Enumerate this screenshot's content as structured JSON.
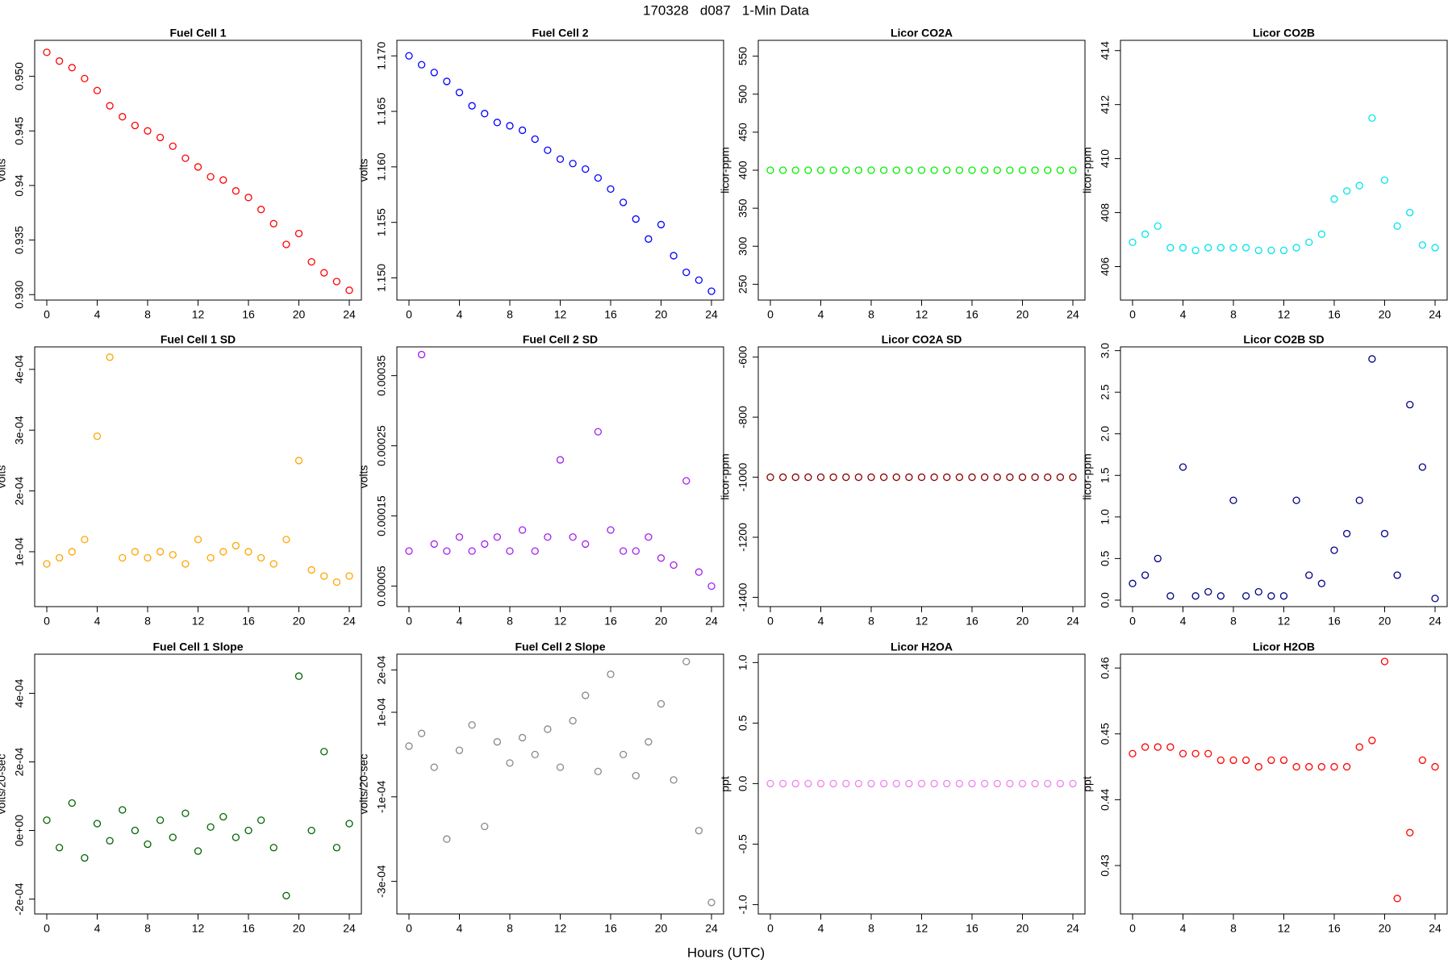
{
  "title": "170328   d087   1-Min Data",
  "xlabel": "Hours (UTC)",
  "chart_data": [
    {
      "type": "scatter",
      "title": "Fuel Cell 1",
      "ylabel": "volts",
      "color": "#ff0000",
      "x": [
        0,
        1,
        2,
        3,
        4,
        5,
        6,
        7,
        8,
        9,
        10,
        11,
        12,
        13,
        14,
        15,
        16,
        17,
        18,
        19,
        20,
        21,
        22,
        23,
        24
      ],
      "values": [
        0.9522,
        0.9514,
        0.9508,
        0.9498,
        0.9487,
        0.9473,
        0.9463,
        0.9455,
        0.945,
        0.9444,
        0.9436,
        0.9425,
        0.9417,
        0.9408,
        0.9405,
        0.9395,
        0.9389,
        0.9378,
        0.9365,
        0.9346,
        0.9356,
        0.933,
        0.932,
        0.9312,
        0.9304
      ],
      "xlim": [
        -0.96,
        24.96
      ],
      "xticks": [
        0,
        4,
        8,
        12,
        16,
        20,
        24
      ],
      "ylim": [
        0.9295,
        0.9533
      ],
      "yticks": [
        {
          "value": 0.93,
          "label": "0.930"
        },
        0.935,
        0.94,
        0.945,
        {
          "value": 0.95,
          "label": "0.950"
        }
      ]
    },
    {
      "type": "scatter",
      "title": "Fuel Cell 2",
      "ylabel": "volts",
      "color": "#0000ff",
      "x": [
        0,
        1,
        2,
        3,
        4,
        5,
        6,
        7,
        8,
        9,
        10,
        11,
        12,
        13,
        14,
        15,
        16,
        17,
        18,
        19,
        20,
        21,
        22,
        23,
        24
      ],
      "values": [
        1.17,
        1.1692,
        1.1685,
        1.1677,
        1.1667,
        1.1655,
        1.1648,
        1.164,
        1.1637,
        1.1633,
        1.1625,
        1.1615,
        1.1607,
        1.1603,
        1.1598,
        1.159,
        1.158,
        1.1568,
        1.1553,
        1.1535,
        1.1548,
        1.152,
        1.1505,
        1.1498,
        1.1488
      ],
      "xlim": [
        -0.96,
        24.96
      ],
      "xticks": [
        0,
        4,
        8,
        12,
        16,
        20,
        24
      ],
      "ylim": [
        1.148,
        1.1714
      ],
      "yticks": [
        {
          "value": 1.15,
          "label": "1.150"
        },
        1.155,
        {
          "value": 1.16,
          "label": "1.160"
        },
        1.165,
        {
          "value": 1.17,
          "label": "1.170"
        }
      ]
    },
    {
      "type": "scatter",
      "title": "Licor CO2A",
      "ylabel": "licor-ppm",
      "color": "#00ee00",
      "x": [
        0,
        1,
        2,
        3,
        4,
        5,
        6,
        7,
        8,
        9,
        10,
        11,
        12,
        13,
        14,
        15,
        16,
        17,
        18,
        19,
        20,
        21,
        22,
        23,
        24
      ],
      "values": [
        400,
        400,
        400,
        400,
        400,
        400,
        400,
        400,
        400,
        400,
        400,
        400,
        400,
        400,
        400,
        400,
        400,
        400,
        400,
        400,
        400,
        400,
        400,
        400,
        400
      ],
      "xlim": [
        -0.96,
        24.96
      ],
      "xticks": [
        0,
        4,
        8,
        12,
        16,
        20,
        24
      ],
      "ylim": [
        229.2,
        570.8
      ],
      "yticks": [
        250,
        300,
        350,
        400,
        450,
        500,
        550
      ]
    },
    {
      "type": "scatter",
      "title": "Licor CO2B",
      "ylabel": "licor-ppm",
      "color": "#00e5ee",
      "x": [
        0,
        1,
        2,
        3,
        4,
        5,
        6,
        7,
        8,
        9,
        10,
        11,
        12,
        13,
        14,
        15,
        16,
        17,
        18,
        19,
        20,
        21,
        22,
        23,
        24
      ],
      "values": [
        406.9,
        407.2,
        407.5,
        406.7,
        406.7,
        406.6,
        406.7,
        406.7,
        406.7,
        406.7,
        406.6,
        406.6,
        406.6,
        406.7,
        406.9,
        407.2,
        408.5,
        408.8,
        409.0,
        411.5,
        409.2,
        407.5,
        408.0,
        406.8,
        406.7
      ],
      "xlim": [
        -0.96,
        24.96
      ],
      "xticks": [
        0,
        4,
        8,
        12,
        16,
        20,
        24
      ],
      "ylim": [
        404.76,
        414.38
      ],
      "yticks": [
        406,
        408,
        410,
        412,
        414
      ]
    },
    {
      "type": "scatter",
      "title": "Fuel Cell 1 SD",
      "ylabel": "volts",
      "color": "#ffa500",
      "x": [
        0,
        1,
        2,
        3,
        4,
        5,
        6,
        7,
        8,
        9,
        10,
        11,
        12,
        13,
        14,
        15,
        16,
        17,
        18,
        19,
        20,
        21,
        22,
        23,
        24
      ],
      "values": [
        8e-05,
        9e-05,
        0.0001,
        0.00012,
        0.00029,
        0.00042,
        9e-05,
        0.0001,
        9e-05,
        0.0001,
        9.5e-05,
        8e-05,
        0.00012,
        9e-05,
        0.0001,
        0.00011,
        0.0001,
        9e-05,
        8e-05,
        0.00012,
        0.00025,
        7e-05,
        6e-05,
        5e-05,
        6e-05
      ],
      "xlim": [
        -0.96,
        24.96
      ],
      "xticks": [
        0,
        4,
        8,
        12,
        16,
        20,
        24
      ],
      "ylim": [
        9.7e-06,
        0.000437
      ],
      "yticks": [
        {
          "value": 0.0001,
          "label": "1e-04"
        },
        {
          "value": 0.0002,
          "label": "2e-04"
        },
        {
          "value": 0.0003,
          "label": "3e-04"
        },
        {
          "value": 0.0004,
          "label": "4e-04"
        }
      ]
    },
    {
      "type": "scatter",
      "title": "Fuel Cell 2 SD",
      "ylabel": "volts",
      "color": "#a020f0",
      "x": [
        0,
        1,
        2,
        3,
        4,
        5,
        6,
        7,
        8,
        9,
        10,
        11,
        12,
        13,
        14,
        15,
        16,
        17,
        18,
        19,
        20,
        21,
        22,
        23,
        24
      ],
      "values": [
        0.0001,
        0.00038,
        0.00011,
        0.0001,
        0.00012,
        0.0001,
        0.00011,
        0.00012,
        0.0001,
        0.00013,
        0.0001,
        0.00012,
        0.00023,
        0.00012,
        0.00011,
        0.00027,
        0.00013,
        0.0001,
        0.0001,
        0.00012,
        9e-05,
        8e-05,
        0.0002,
        7e-05,
        5e-05
      ],
      "xlim": [
        -0.96,
        24.96
      ],
      "xticks": [
        0,
        4,
        8,
        12,
        16,
        20,
        24
      ],
      "ylim": [
        2.08e-05,
        0.000391
      ],
      "yticks": [
        5e-05,
        0.00015,
        0.00025,
        0.00035
      ]
    },
    {
      "type": "scatter",
      "title": "Licor CO2A SD",
      "ylabel": "licor-ppm",
      "color": "#8b0000",
      "x": [
        0,
        1,
        2,
        3,
        4,
        5,
        6,
        7,
        8,
        9,
        10,
        11,
        12,
        13,
        14,
        15,
        16,
        17,
        18,
        19,
        20,
        21,
        22,
        23,
        24
      ],
      "values": [
        -1000,
        -1000,
        -1000,
        -1000,
        -1000,
        -1000,
        -1000,
        -1000,
        -1000,
        -1000,
        -1000,
        -1000,
        -1000,
        -1000,
        -1000,
        -1000,
        -1000,
        -1000,
        -1000,
        -1000,
        -1000,
        -1000,
        -1000,
        -1000,
        -1000
      ],
      "xlim": [
        -0.96,
        24.96
      ],
      "xticks": [
        0,
        4,
        8,
        12,
        16,
        20,
        24
      ],
      "ylim": [
        -1431,
        -565.9
      ],
      "yticks": [
        -1400,
        -1200,
        -1000,
        -800,
        -600
      ]
    },
    {
      "type": "scatter",
      "title": "Licor CO2B SD",
      "ylabel": "licor-ppm",
      "color": "#000080",
      "x": [
        0,
        1,
        2,
        3,
        4,
        5,
        6,
        7,
        8,
        9,
        10,
        11,
        12,
        13,
        14,
        15,
        16,
        17,
        18,
        19,
        20,
        21,
        22,
        23,
        24
      ],
      "values": [
        0.2,
        0.3,
        0.5,
        0.05,
        1.6,
        0.05,
        0.1,
        0.05,
        1.2,
        0.05,
        0.1,
        0.05,
        0.05,
        1.2,
        0.3,
        0.2,
        0.6,
        0.8,
        1.2,
        2.9,
        0.8,
        0.3,
        2.35,
        1.6,
        0.02
      ],
      "xlim": [
        -0.96,
        24.96
      ],
      "xticks": [
        0,
        4,
        8,
        12,
        16,
        20,
        24
      ],
      "ylim": [
        -0.078,
        3.045
      ],
      "yticks": [
        {
          "value": 0,
          "label": "0.0"
        },
        0.5,
        {
          "value": 1,
          "label": "1.0"
        },
        1.5,
        {
          "value": 2,
          "label": "2.0"
        },
        2.5,
        {
          "value": 3,
          "label": "3.0"
        }
      ]
    },
    {
      "type": "scatter",
      "title": "Fuel Cell 1 Slope",
      "ylabel": "volts/20-sec",
      "color": "#006400",
      "x": [
        0,
        1,
        2,
        3,
        4,
        5,
        6,
        7,
        8,
        9,
        10,
        11,
        12,
        13,
        14,
        15,
        16,
        17,
        18,
        19,
        20,
        21,
        22,
        23,
        24
      ],
      "values": [
        3e-05,
        -5e-05,
        8e-05,
        -8e-05,
        2e-05,
        -3e-05,
        6e-05,
        0,
        -4e-05,
        3e-05,
        -2e-05,
        5e-05,
        -6e-05,
        1e-05,
        4e-05,
        -2e-05,
        0,
        3e-05,
        -5e-05,
        -0.00019,
        0.00045,
        0,
        0.00023,
        -5e-05,
        2e-05
      ],
      "xlim": [
        -0.96,
        24.96
      ],
      "xticks": [
        0,
        4,
        8,
        12,
        16,
        20,
        24
      ],
      "ylim": [
        -0.0002434,
        0.000514
      ],
      "yticks": [
        {
          "value": -0.0002,
          "label": "-2e-04"
        },
        {
          "value": 0,
          "label": "0e+00"
        },
        {
          "value": 0.0002,
          "label": "2e-04"
        },
        {
          "value": 0.0004,
          "label": "4e-04"
        }
      ]
    },
    {
      "type": "scatter",
      "title": "Fuel Cell 2 Slope",
      "ylabel": "volts/20-sec",
      "color": "#888888",
      "x": [
        0,
        1,
        2,
        3,
        4,
        5,
        6,
        7,
        8,
        9,
        10,
        11,
        12,
        13,
        14,
        15,
        16,
        17,
        18,
        19,
        20,
        21,
        22,
        23,
        24
      ],
      "values": [
        2e-05,
        5e-05,
        -3e-05,
        -0.0002,
        1e-05,
        7e-05,
        -0.00017,
        3e-05,
        -2e-05,
        4e-05,
        0,
        6e-05,
        -3e-05,
        8e-05,
        0.00014,
        -4e-05,
        0.00019,
        0,
        -5e-05,
        3e-05,
        0.00012,
        -6e-05,
        0.00022,
        -0.00018,
        -0.00035
      ],
      "xlim": [
        -0.96,
        24.96
      ],
      "xticks": [
        0,
        4,
        8,
        12,
        16,
        20,
        24
      ],
      "ylim": [
        -0.0003771,
        0.0002374
      ],
      "yticks": [
        {
          "value": -0.0003,
          "label": "-3e-04"
        },
        {
          "value": -0.0001,
          "label": "-1e-04"
        },
        {
          "value": 0.0001,
          "label": "1e-04"
        },
        {
          "value": 0.0002,
          "label": "2e-04"
        }
      ]
    },
    {
      "type": "scatter",
      "title": "Licor H2OA",
      "ylabel": "ppt",
      "color": "#ee82ee",
      "x": [
        0,
        1,
        2,
        3,
        4,
        5,
        6,
        7,
        8,
        9,
        10,
        11,
        12,
        13,
        14,
        15,
        16,
        17,
        18,
        19,
        20,
        21,
        22,
        23,
        24
      ],
      "values": [
        0,
        0,
        0,
        0,
        0,
        0,
        0,
        0,
        0,
        0,
        0,
        0,
        0,
        0,
        0,
        0,
        0,
        0,
        0,
        0,
        0,
        0,
        0,
        0,
        0
      ],
      "xlim": [
        -0.96,
        24.96
      ],
      "xticks": [
        0,
        4,
        8,
        12,
        16,
        20,
        24
      ],
      "ylim": [
        -1.077,
        1.069
      ],
      "yticks": [
        {
          "value": -1,
          "label": "-1.0"
        },
        -0.5,
        {
          "value": 0,
          "label": "0.0"
        },
        0.5,
        {
          "value": 1,
          "label": "1.0"
        }
      ]
    },
    {
      "type": "scatter",
      "title": "Licor H2OB",
      "ylabel": "ppt",
      "color": "#ff0000",
      "x": [
        0,
        1,
        2,
        3,
        4,
        5,
        6,
        7,
        8,
        9,
        10,
        11,
        12,
        13,
        14,
        15,
        16,
        17,
        18,
        19,
        20,
        21,
        22,
        23,
        24
      ],
      "values": [
        0.447,
        0.448,
        0.448,
        0.448,
        0.447,
        0.447,
        0.447,
        0.446,
        0.446,
        0.446,
        0.445,
        0.446,
        0.446,
        0.445,
        0.445,
        0.445,
        0.445,
        0.445,
        0.448,
        0.449,
        0.461,
        0.425,
        0.435,
        0.446,
        0.445
      ],
      "xlim": [
        -0.96,
        24.96
      ],
      "xticks": [
        0,
        4,
        8,
        12,
        16,
        20,
        24
      ],
      "ylim": [
        0.42265,
        0.4621
      ],
      "yticks": [
        0.43,
        0.44,
        0.45,
        0.46
      ]
    }
  ]
}
